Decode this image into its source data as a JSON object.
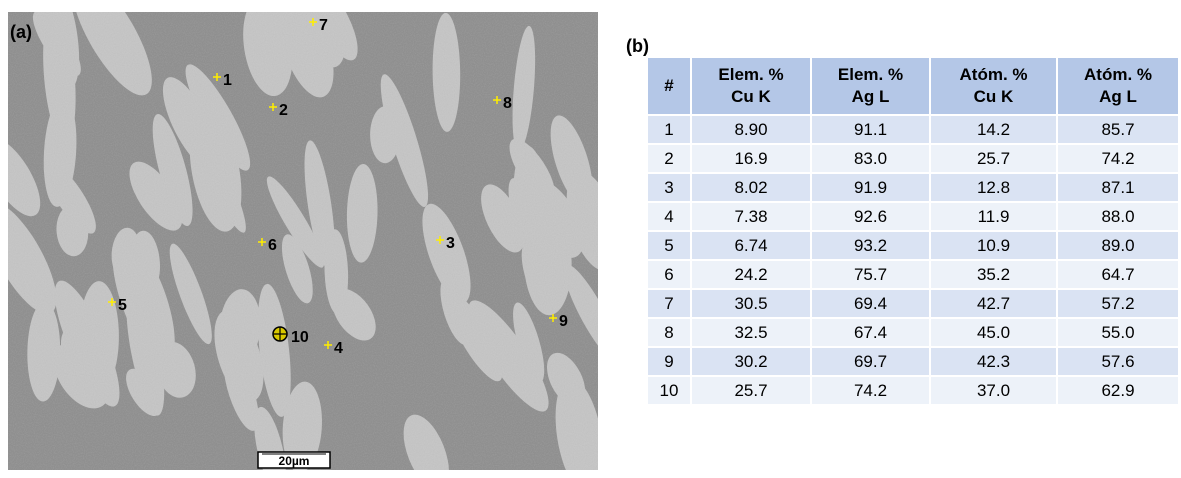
{
  "panel_a": {
    "label": "(a)",
    "points": [
      "1",
      "2",
      "3",
      "4",
      "5",
      "6",
      "7",
      "8",
      "9",
      "10"
    ],
    "scale_bar": "20µm"
  },
  "panel_b": {
    "label": "(b)",
    "table": {
      "header": [
        [
          "#"
        ],
        [
          "Elem. %",
          "Cu K"
        ],
        [
          "Elem. %",
          "Ag L"
        ],
        [
          "Atóm. %",
          "Cu K"
        ],
        [
          "Atóm. %",
          "Ag L"
        ]
      ],
      "rows": [
        [
          "1",
          "8.90",
          "91.1",
          "14.2",
          "85.7"
        ],
        [
          "2",
          "16.9",
          "83.0",
          "25.7",
          "74.2"
        ],
        [
          "3",
          "8.02",
          "91.9",
          "12.8",
          "87.1"
        ],
        [
          "4",
          "7.38",
          "92.6",
          "11.9",
          "88.0"
        ],
        [
          "5",
          "6.74",
          "93.2",
          "10.9",
          "89.0"
        ],
        [
          "6",
          "24.2",
          "75.7",
          "35.2",
          "64.7"
        ],
        [
          "7",
          "30.5",
          "69.4",
          "42.7",
          "57.2"
        ],
        [
          "8",
          "32.5",
          "67.4",
          "45.0",
          "55.0"
        ],
        [
          "9",
          "30.2",
          "69.7",
          "42.3",
          "57.6"
        ],
        [
          "10",
          "25.7",
          "74.2",
          "37.0",
          "62.9"
        ]
      ]
    }
  }
}
